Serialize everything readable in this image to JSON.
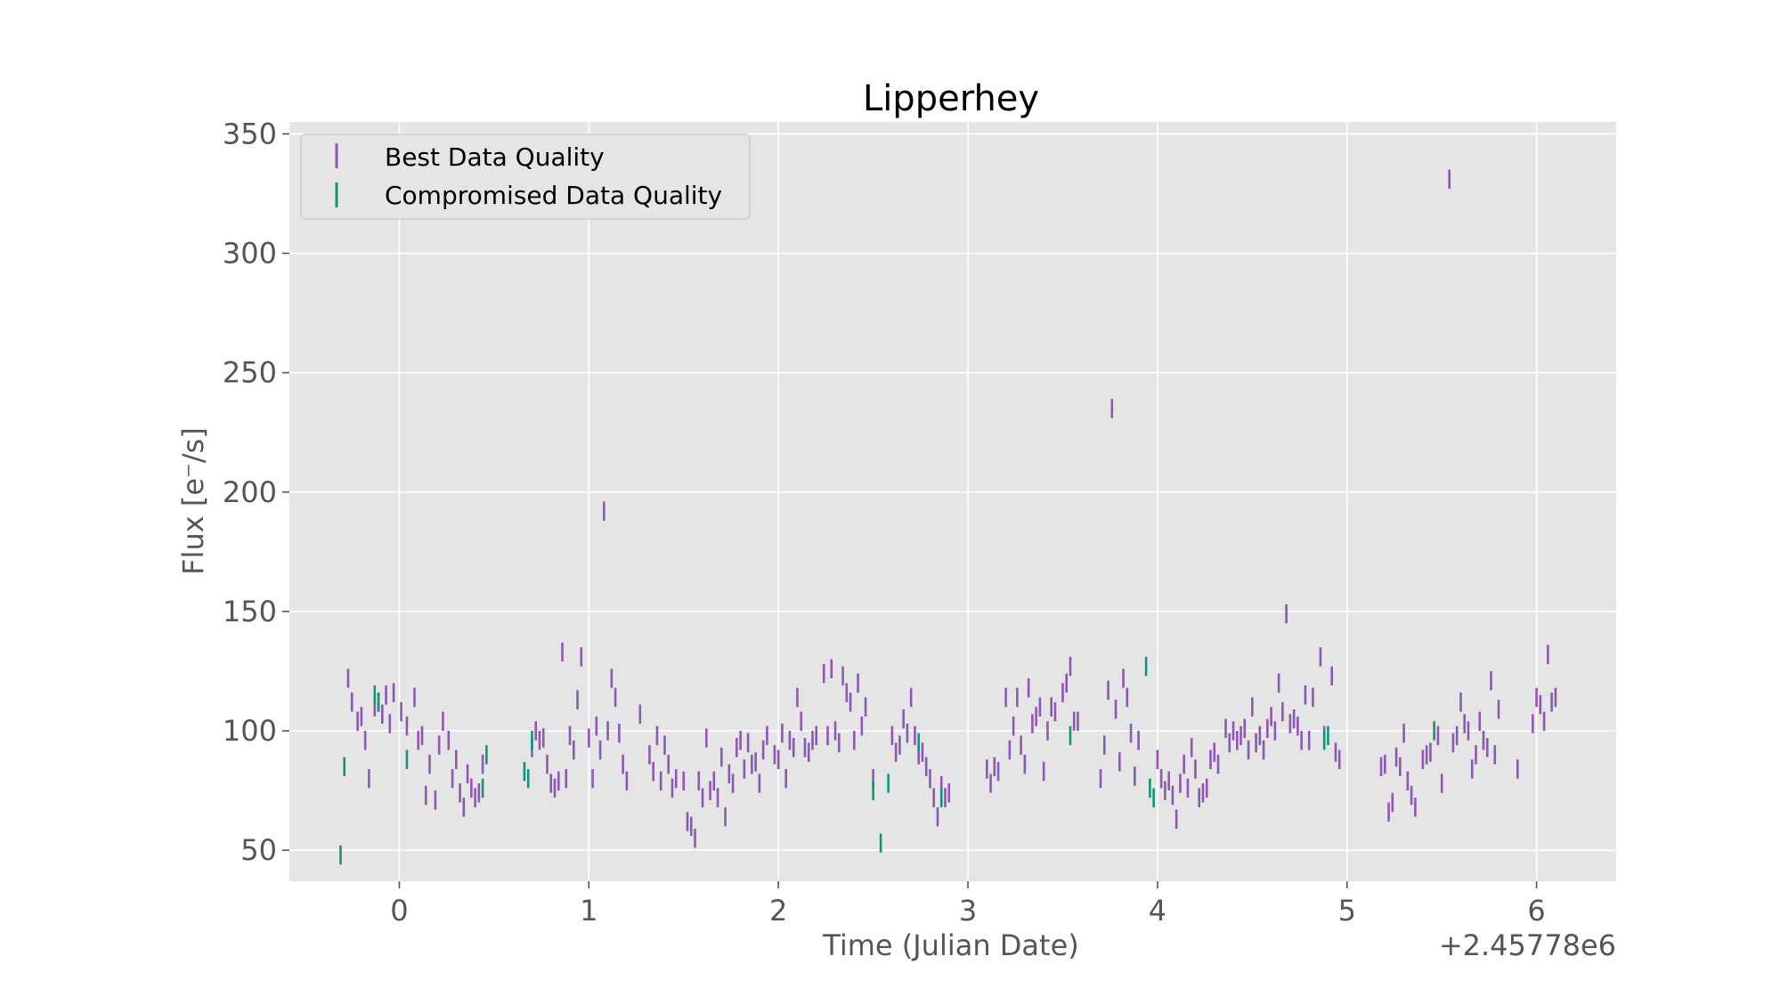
{
  "chart_data": {
    "type": "scatter",
    "title": "Lipperhey",
    "xlabel": "Time (Julian Date)",
    "ylabel": "Flux [e⁻/s]",
    "x_offset_label": "+2.45778e6",
    "xlim": [
      -0.58,
      6.42
    ],
    "ylim": [
      37,
      355
    ],
    "xticks": [
      0,
      1,
      2,
      3,
      4,
      5,
      6
    ],
    "yticks": [
      50,
      100,
      150,
      200,
      250,
      300,
      350
    ],
    "grid": true,
    "legend": "upper-left",
    "colors": {
      "best": "#8e57b5",
      "compromised": "#11957a",
      "panel": "#e5e5e5",
      "grid": "#ffffff",
      "tick": "#555555"
    },
    "series": [
      {
        "name": "Best Data Quality",
        "error": 4,
        "points": [
          [
            -0.27,
            122
          ],
          [
            -0.25,
            112
          ],
          [
            -0.22,
            104
          ],
          [
            -0.2,
            106
          ],
          [
            -0.18,
            96
          ],
          [
            -0.16,
            80
          ],
          [
            -0.13,
            110
          ],
          [
            -0.11,
            112
          ],
          [
            -0.09,
            107
          ],
          [
            -0.07,
            115
          ],
          [
            -0.05,
            103
          ],
          [
            -0.03,
            116
          ],
          [
            0.01,
            108
          ],
          [
            0.04,
            102
          ],
          [
            0.08,
            114
          ],
          [
            0.1,
            96
          ],
          [
            0.12,
            98
          ],
          [
            0.14,
            73
          ],
          [
            0.16,
            86
          ],
          [
            0.19,
            71
          ],
          [
            0.21,
            94
          ],
          [
            0.23,
            104
          ],
          [
            0.26,
            96
          ],
          [
            0.28,
            80
          ],
          [
            0.3,
            88
          ],
          [
            0.32,
            74
          ],
          [
            0.34,
            68
          ],
          [
            0.36,
            82
          ],
          [
            0.38,
            76
          ],
          [
            0.4,
            72
          ],
          [
            0.42,
            74
          ],
          [
            0.44,
            86
          ],
          [
            0.7,
            93
          ],
          [
            0.72,
            100
          ],
          [
            0.74,
            96
          ],
          [
            0.76,
            97
          ],
          [
            0.78,
            86
          ],
          [
            0.8,
            78
          ],
          [
            0.82,
            76
          ],
          [
            0.84,
            79
          ],
          [
            0.86,
            133
          ],
          [
            0.88,
            80
          ],
          [
            0.9,
            98
          ],
          [
            0.92,
            92
          ],
          [
            0.94,
            113
          ],
          [
            0.96,
            131
          ],
          [
            1.0,
            97
          ],
          [
            1.02,
            80
          ],
          [
            1.04,
            102
          ],
          [
            1.06,
            92
          ],
          [
            1.08,
            192
          ],
          [
            1.1,
            100
          ],
          [
            1.12,
            122
          ],
          [
            1.14,
            114
          ],
          [
            1.16,
            99
          ],
          [
            1.18,
            86
          ],
          [
            1.2,
            79
          ],
          [
            1.27,
            107
          ],
          [
            1.32,
            90
          ],
          [
            1.34,
            83
          ],
          [
            1.36,
            98
          ],
          [
            1.38,
            79
          ],
          [
            1.4,
            94
          ],
          [
            1.42,
            86
          ],
          [
            1.44,
            76
          ],
          [
            1.46,
            80
          ],
          [
            1.5,
            79
          ],
          [
            1.52,
            62
          ],
          [
            1.54,
            60
          ],
          [
            1.56,
            55
          ],
          [
            1.58,
            79
          ],
          [
            1.6,
            72
          ],
          [
            1.62,
            97
          ],
          [
            1.64,
            75
          ],
          [
            1.66,
            79
          ],
          [
            1.68,
            72
          ],
          [
            1.7,
            89
          ],
          [
            1.72,
            64
          ],
          [
            1.74,
            82
          ],
          [
            1.76,
            78
          ],
          [
            1.78,
            93
          ],
          [
            1.8,
            96
          ],
          [
            1.82,
            84
          ],
          [
            1.84,
            95
          ],
          [
            1.86,
            86
          ],
          [
            1.88,
            87
          ],
          [
            1.9,
            78
          ],
          [
            1.92,
            92
          ],
          [
            1.94,
            98
          ],
          [
            1.98,
            90
          ],
          [
            2.0,
            88
          ],
          [
            2.02,
            99
          ],
          [
            2.04,
            80
          ],
          [
            2.06,
            96
          ],
          [
            2.08,
            93
          ],
          [
            2.1,
            114
          ],
          [
            2.12,
            104
          ],
          [
            2.14,
            93
          ],
          [
            2.16,
            91
          ],
          [
            2.18,
            96
          ],
          [
            2.2,
            98
          ],
          [
            2.24,
            124
          ],
          [
            2.26,
            98
          ],
          [
            2.28,
            126
          ],
          [
            2.3,
            100
          ],
          [
            2.32,
            95
          ],
          [
            2.34,
            123
          ],
          [
            2.36,
            116
          ],
          [
            2.38,
            112
          ],
          [
            2.4,
            96
          ],
          [
            2.42,
            120
          ],
          [
            2.44,
            102
          ],
          [
            2.46,
            110
          ],
          [
            2.5,
            80
          ],
          [
            2.6,
            98
          ],
          [
            2.62,
            91
          ],
          [
            2.64,
            94
          ],
          [
            2.66,
            105
          ],
          [
            2.68,
            99
          ],
          [
            2.7,
            114
          ],
          [
            2.72,
            98
          ],
          [
            2.74,
            90
          ],
          [
            2.76,
            91
          ],
          [
            2.78,
            85
          ],
          [
            2.8,
            80
          ],
          [
            2.82,
            72
          ],
          [
            2.84,
            64
          ],
          [
            2.86,
            77
          ],
          [
            2.88,
            72
          ],
          [
            2.9,
            74
          ],
          [
            3.1,
            84
          ],
          [
            3.12,
            78
          ],
          [
            3.14,
            85
          ],
          [
            3.16,
            83
          ],
          [
            3.2,
            114
          ],
          [
            3.22,
            92
          ],
          [
            3.24,
            102
          ],
          [
            3.26,
            114
          ],
          [
            3.28,
            94
          ],
          [
            3.3,
            86
          ],
          [
            3.32,
            118
          ],
          [
            3.34,
            103
          ],
          [
            3.36,
            106
          ],
          [
            3.38,
            110
          ],
          [
            3.4,
            83
          ],
          [
            3.42,
            100
          ],
          [
            3.44,
            110
          ],
          [
            3.46,
            108
          ],
          [
            3.5,
            116
          ],
          [
            3.52,
            120
          ],
          [
            3.54,
            127
          ],
          [
            3.56,
            104
          ],
          [
            3.58,
            104
          ],
          [
            3.7,
            80
          ],
          [
            3.72,
            94
          ],
          [
            3.74,
            117
          ],
          [
            3.76,
            235
          ],
          [
            3.78,
            109
          ],
          [
            3.8,
            87
          ],
          [
            3.82,
            122
          ],
          [
            3.84,
            114
          ],
          [
            3.86,
            99
          ],
          [
            3.88,
            81
          ],
          [
            3.9,
            96
          ],
          [
            4.0,
            88
          ],
          [
            4.02,
            80
          ],
          [
            4.04,
            75
          ],
          [
            4.06,
            79
          ],
          [
            4.08,
            73
          ],
          [
            4.1,
            63
          ],
          [
            4.12,
            78
          ],
          [
            4.14,
            86
          ],
          [
            4.16,
            76
          ],
          [
            4.18,
            93
          ],
          [
            4.2,
            84
          ],
          [
            4.22,
            72
          ],
          [
            4.24,
            74
          ],
          [
            4.26,
            76
          ],
          [
            4.28,
            88
          ],
          [
            4.3,
            91
          ],
          [
            4.32,
            86
          ],
          [
            4.36,
            101
          ],
          [
            4.38,
            95
          ],
          [
            4.4,
            100
          ],
          [
            4.42,
            96
          ],
          [
            4.44,
            98
          ],
          [
            4.46,
            101
          ],
          [
            4.48,
            92
          ],
          [
            4.5,
            110
          ],
          [
            4.52,
            95
          ],
          [
            4.54,
            98
          ],
          [
            4.56,
            92
          ],
          [
            4.58,
            101
          ],
          [
            4.6,
            106
          ],
          [
            4.62,
            100
          ],
          [
            4.64,
            120
          ],
          [
            4.66,
            108
          ],
          [
            4.68,
            149
          ],
          [
            4.7,
            103
          ],
          [
            4.72,
            105
          ],
          [
            4.74,
            102
          ],
          [
            4.76,
            96
          ],
          [
            4.78,
            115
          ],
          [
            4.8,
            96
          ],
          [
            4.82,
            114
          ],
          [
            4.86,
            131
          ],
          [
            4.88,
            98
          ],
          [
            4.92,
            123
          ],
          [
            4.94,
            91
          ],
          [
            4.96,
            88
          ],
          [
            5.18,
            85
          ],
          [
            5.2,
            86
          ],
          [
            5.22,
            66
          ],
          [
            5.24,
            70
          ],
          [
            5.26,
            89
          ],
          [
            5.28,
            85
          ],
          [
            5.3,
            99
          ],
          [
            5.32,
            79
          ],
          [
            5.34,
            73
          ],
          [
            5.36,
            68
          ],
          [
            5.4,
            88
          ],
          [
            5.42,
            90
          ],
          [
            5.44,
            91
          ],
          [
            5.48,
            98
          ],
          [
            5.5,
            78
          ],
          [
            5.54,
            331
          ],
          [
            5.56,
            95
          ],
          [
            5.58,
            98
          ],
          [
            5.6,
            112
          ],
          [
            5.62,
            103
          ],
          [
            5.64,
            100
          ],
          [
            5.66,
            84
          ],
          [
            5.68,
            90
          ],
          [
            5.7,
            104
          ],
          [
            5.72,
            96
          ],
          [
            5.74,
            93
          ],
          [
            5.76,
            121
          ],
          [
            5.78,
            90
          ],
          [
            5.8,
            109
          ],
          [
            5.9,
            84
          ],
          [
            5.98,
            103
          ],
          [
            6.0,
            114
          ],
          [
            6.02,
            111
          ],
          [
            6.04,
            104
          ],
          [
            6.06,
            132
          ],
          [
            6.08,
            112
          ],
          [
            6.1,
            114
          ]
        ]
      },
      {
        "name": "Compromised Data Quality",
        "error": 4,
        "points": [
          [
            -0.31,
            48
          ],
          [
            -0.29,
            85
          ],
          [
            -0.13,
            115
          ],
          [
            -0.11,
            112
          ],
          [
            0.04,
            88
          ],
          [
            0.46,
            90
          ],
          [
            0.44,
            76
          ],
          [
            0.66,
            83
          ],
          [
            0.68,
            80
          ],
          [
            0.7,
            96
          ],
          [
            2.5,
            75
          ],
          [
            2.54,
            53
          ],
          [
            2.58,
            78
          ],
          [
            2.74,
            95
          ],
          [
            2.86,
            72
          ],
          [
            3.54,
            98
          ],
          [
            3.94,
            127
          ],
          [
            3.98,
            72
          ],
          [
            3.96,
            76
          ],
          [
            4.88,
            96
          ],
          [
            4.9,
            98
          ],
          [
            5.46,
            100
          ]
        ]
      }
    ]
  }
}
